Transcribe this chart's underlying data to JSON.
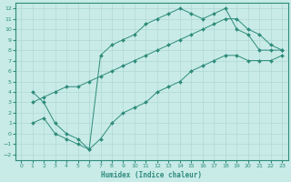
{
  "line1_x": [
    1,
    2,
    3,
    4,
    5,
    6,
    7,
    8,
    9,
    10,
    11,
    12,
    13,
    14,
    15,
    16,
    17,
    18,
    19,
    20,
    21,
    22,
    23
  ],
  "line1_y": [
    4,
    3,
    1,
    0,
    -0.5,
    -1.5,
    7.5,
    8.5,
    9,
    9.5,
    10.5,
    11,
    11.5,
    12,
    11.5,
    11,
    11.5,
    12,
    10,
    9.5,
    8,
    8,
    8
  ],
  "line2_x": [
    1,
    2,
    3,
    4,
    5,
    6,
    7,
    8,
    9,
    10,
    11,
    12,
    13,
    14,
    15,
    16,
    17,
    18,
    19,
    20,
    21,
    22,
    23
  ],
  "line2_y": [
    3,
    3.5,
    4,
    4.5,
    4.5,
    5,
    5.5,
    6,
    6.5,
    7,
    7.5,
    8,
    8.5,
    9,
    9.5,
    10,
    10.5,
    11,
    11,
    10,
    9.5,
    8.5,
    8
  ],
  "line3_x": [
    1,
    2,
    3,
    4,
    5,
    6,
    7,
    8,
    9,
    10,
    11,
    12,
    13,
    14,
    15,
    16,
    17,
    18,
    19,
    20,
    21,
    22,
    23
  ],
  "line3_y": [
    1,
    1.5,
    0,
    -0.5,
    -1,
    -1.5,
    -0.5,
    1,
    2,
    2.5,
    3,
    4,
    4.5,
    5,
    6,
    6.5,
    7,
    7.5,
    7.5,
    7,
    7,
    7,
    7.5
  ],
  "line_color": "#2e8b7a",
  "bg_color": "#c8ebe8",
  "grid_color": "#b0d8d4",
  "xlabel": "Humidex (Indice chaleur)",
  "xlim": [
    -0.5,
    23.5
  ],
  "ylim": [
    -2.5,
    12.5
  ],
  "xticks": [
    0,
    1,
    2,
    3,
    4,
    5,
    6,
    7,
    8,
    9,
    10,
    11,
    12,
    13,
    14,
    15,
    16,
    17,
    18,
    19,
    20,
    21,
    22,
    23
  ],
  "yticks": [
    -2,
    -1,
    0,
    1,
    2,
    3,
    4,
    5,
    6,
    7,
    8,
    9,
    10,
    11,
    12
  ]
}
